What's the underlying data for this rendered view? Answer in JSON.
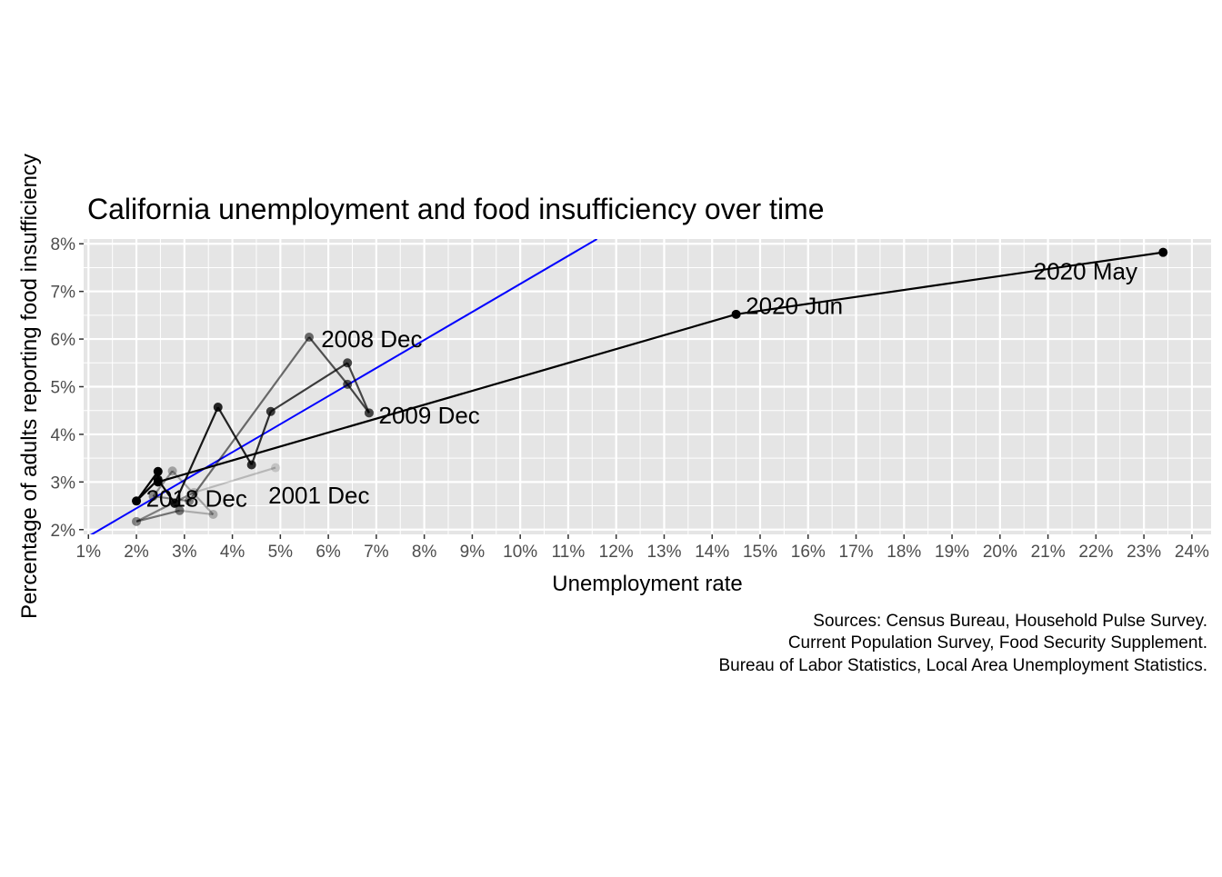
{
  "chart_data": {
    "type": "line",
    "title": "California unemployment and food insufficiency over time",
    "xlabel": "Unemployment rate",
    "ylabel": "Percentage of adults reporting food insufficiency",
    "caption": [
      "Sources: Census Bureau, Household Pulse Survey.",
      "Current Population Survey, Food Security Supplement.",
      "Bureau of Labor Statistics, Local Area Unemployment Statistics."
    ],
    "xlim": [
      0.9,
      24.4
    ],
    "ylim": [
      1.9,
      8.1
    ],
    "x_ticks": [
      1,
      2,
      3,
      4,
      5,
      6,
      7,
      8,
      9,
      10,
      11,
      12,
      13,
      14,
      15,
      16,
      17,
      18,
      19,
      20,
      21,
      22,
      23,
      24
    ],
    "x_tick_labels": [
      "1%",
      "2%",
      "3%",
      "4%",
      "5%",
      "6%",
      "7%",
      "8%",
      "9%",
      "10%",
      "11%",
      "12%",
      "13%",
      "14%",
      "15%",
      "16%",
      "17%",
      "18%",
      "19%",
      "20%",
      "21%",
      "22%",
      "23%",
      "24%"
    ],
    "y_ticks": [
      2,
      3,
      4,
      5,
      6,
      7,
      8
    ],
    "y_tick_labels": [
      "2%",
      "3%",
      "4%",
      "5%",
      "6%",
      "7%",
      "8%"
    ],
    "grid": true,
    "colors": {
      "panel": "#e5e5e5",
      "grid": "#ffffff",
      "point": "#000000",
      "fit_line": "#0000ff",
      "text": "#000000",
      "tick_text": "#4d4d4d"
    },
    "fit_line": {
      "points": [
        [
          0.9,
          1.8
        ],
        [
          11.6,
          8.1
        ]
      ]
    },
    "series": [
      {
        "points": [
          {
            "x": 4.9,
            "y": 3.3,
            "alpha": 0.15
          },
          {
            "x": 3.2,
            "y": 2.78,
            "alpha": 0.2
          },
          {
            "x": 2.0,
            "y": 2.17,
            "alpha": 0.45
          },
          {
            "x": 2.9,
            "y": 2.4,
            "alpha": 0.5
          },
          {
            "x": 3.6,
            "y": 2.32,
            "alpha": 0.25
          },
          {
            "x": 2.75,
            "y": 3.23,
            "alpha": 0.3
          },
          {
            "x": 2.35,
            "y": 2.7,
            "alpha": 0.4
          },
          {
            "x": 3.1,
            "y": 2.6,
            "alpha": 0.45
          },
          {
            "x": 5.6,
            "y": 6.04,
            "alpha": 0.55
          },
          {
            "x": 6.4,
            "y": 5.05,
            "alpha": 0.65
          },
          {
            "x": 6.85,
            "y": 4.45,
            "alpha": 0.7
          },
          {
            "x": 6.4,
            "y": 5.5,
            "alpha": 0.7
          },
          {
            "x": 4.8,
            "y": 4.48,
            "alpha": 0.75
          },
          {
            "x": 4.4,
            "y": 3.36,
            "alpha": 0.8
          },
          {
            "x": 3.7,
            "y": 4.57,
            "alpha": 0.85
          },
          {
            "x": 2.8,
            "y": 2.55,
            "alpha": 0.9
          },
          {
            "x": 2.45,
            "y": 3.05,
            "alpha": 0.95
          },
          {
            "x": 2.0,
            "y": 2.6,
            "alpha": 1.0
          },
          {
            "x": 2.45,
            "y": 3.22,
            "alpha": 1.0
          },
          {
            "x": 2.45,
            "y": 3.0,
            "alpha": 1.0
          },
          {
            "x": 14.5,
            "y": 6.52,
            "alpha": 1.0
          },
          {
            "x": 23.4,
            "y": 7.82,
            "alpha": 1.0
          }
        ]
      }
    ],
    "annotations": [
      {
        "text": "2001 Dec",
        "x": 4.75,
        "y": 2.72
      },
      {
        "text": "2008 Dec",
        "x": 5.85,
        "y": 6.0
      },
      {
        "text": "2009 Dec",
        "x": 7.05,
        "y": 4.4
      },
      {
        "text": "2018 Dec",
        "x": 2.2,
        "y": 2.65
      },
      {
        "text": "2020 Jun",
        "x": 14.7,
        "y": 6.7
      },
      {
        "text": "2020 May",
        "x": 20.7,
        "y": 7.42
      }
    ]
  }
}
